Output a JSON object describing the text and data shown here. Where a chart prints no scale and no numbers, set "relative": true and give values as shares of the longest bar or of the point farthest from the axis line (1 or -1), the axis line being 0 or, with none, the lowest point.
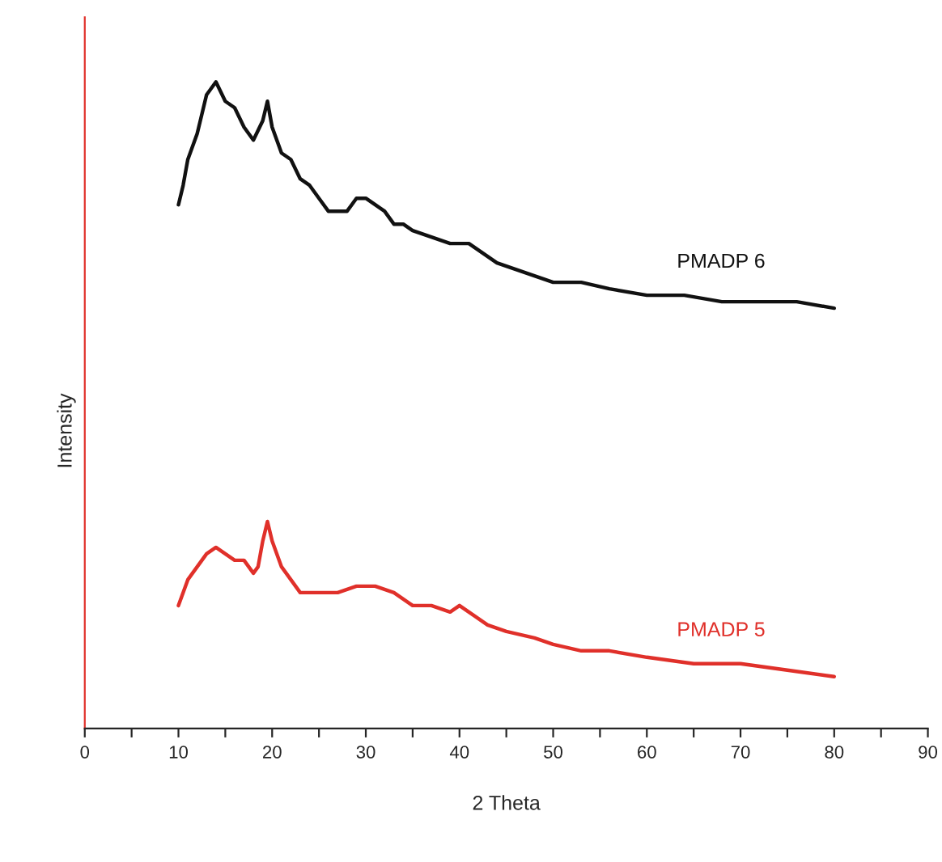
{
  "chart_data": {
    "type": "line",
    "xlabel": "2 Theta",
    "ylabel": "Intensity",
    "relative": true,
    "xlim": [
      0,
      90
    ],
    "xticks": [
      0,
      {
        "value": 5,
        "label": null
      },
      10,
      {
        "value": 15,
        "label": null
      },
      20,
      {
        "value": 25,
        "label": null
      },
      30,
      {
        "value": 35,
        "label": null
      },
      40,
      {
        "value": 45,
        "label": null
      },
      50,
      {
        "value": 55,
        "label": null
      },
      60,
      {
        "value": 65,
        "label": null
      },
      70,
      {
        "value": 75,
        "label": null
      },
      80,
      {
        "value": 85,
        "label": null
      },
      90
    ],
    "tick_labels": "x",
    "grid": false,
    "legend": false,
    "marker": "none",
    "line_style": "solid",
    "series": [
      {
        "name": "PMADP 6",
        "color": "#111111",
        "x": [
          10,
          10.5,
          11,
          12,
          13,
          14,
          15,
          16,
          17,
          18,
          19,
          19.5,
          20,
          21,
          22,
          23,
          24,
          25,
          26,
          27,
          28,
          29,
          30,
          31,
          32,
          33,
          34,
          35,
          37,
          39,
          40,
          41,
          42,
          44,
          46,
          48,
          50,
          53,
          56,
          60,
          64,
          68,
          72,
          76,
          80
        ],
        "values": [
          0.81,
          0.84,
          0.88,
          0.92,
          0.98,
          1.0,
          0.97,
          0.96,
          0.93,
          0.91,
          0.94,
          0.97,
          0.93,
          0.89,
          0.88,
          0.85,
          0.84,
          0.82,
          0.8,
          0.8,
          0.8,
          0.82,
          0.82,
          0.81,
          0.8,
          0.78,
          0.78,
          0.77,
          0.76,
          0.75,
          0.75,
          0.75,
          0.74,
          0.72,
          0.71,
          0.7,
          0.69,
          0.69,
          0.68,
          0.67,
          0.67,
          0.66,
          0.66,
          0.66,
          0.65
        ]
      },
      {
        "name": "PMADP 5",
        "color": "#e0302a",
        "x": [
          10,
          11,
          12,
          13,
          14,
          15,
          16,
          17,
          18,
          18.5,
          19,
          19.5,
          20,
          21,
          22,
          23,
          25,
          27,
          29,
          31,
          33,
          35,
          37,
          39,
          40,
          41,
          43,
          45,
          48,
          50,
          53,
          56,
          60,
          65,
          70,
          75,
          80
        ],
        "values": [
          0.19,
          0.23,
          0.25,
          0.27,
          0.28,
          0.27,
          0.26,
          0.26,
          0.24,
          0.25,
          0.29,
          0.32,
          0.29,
          0.25,
          0.23,
          0.21,
          0.21,
          0.21,
          0.22,
          0.22,
          0.21,
          0.19,
          0.19,
          0.18,
          0.19,
          0.18,
          0.16,
          0.15,
          0.14,
          0.13,
          0.12,
          0.12,
          0.11,
          0.1,
          0.1,
          0.09,
          0.08
        ]
      }
    ]
  }
}
